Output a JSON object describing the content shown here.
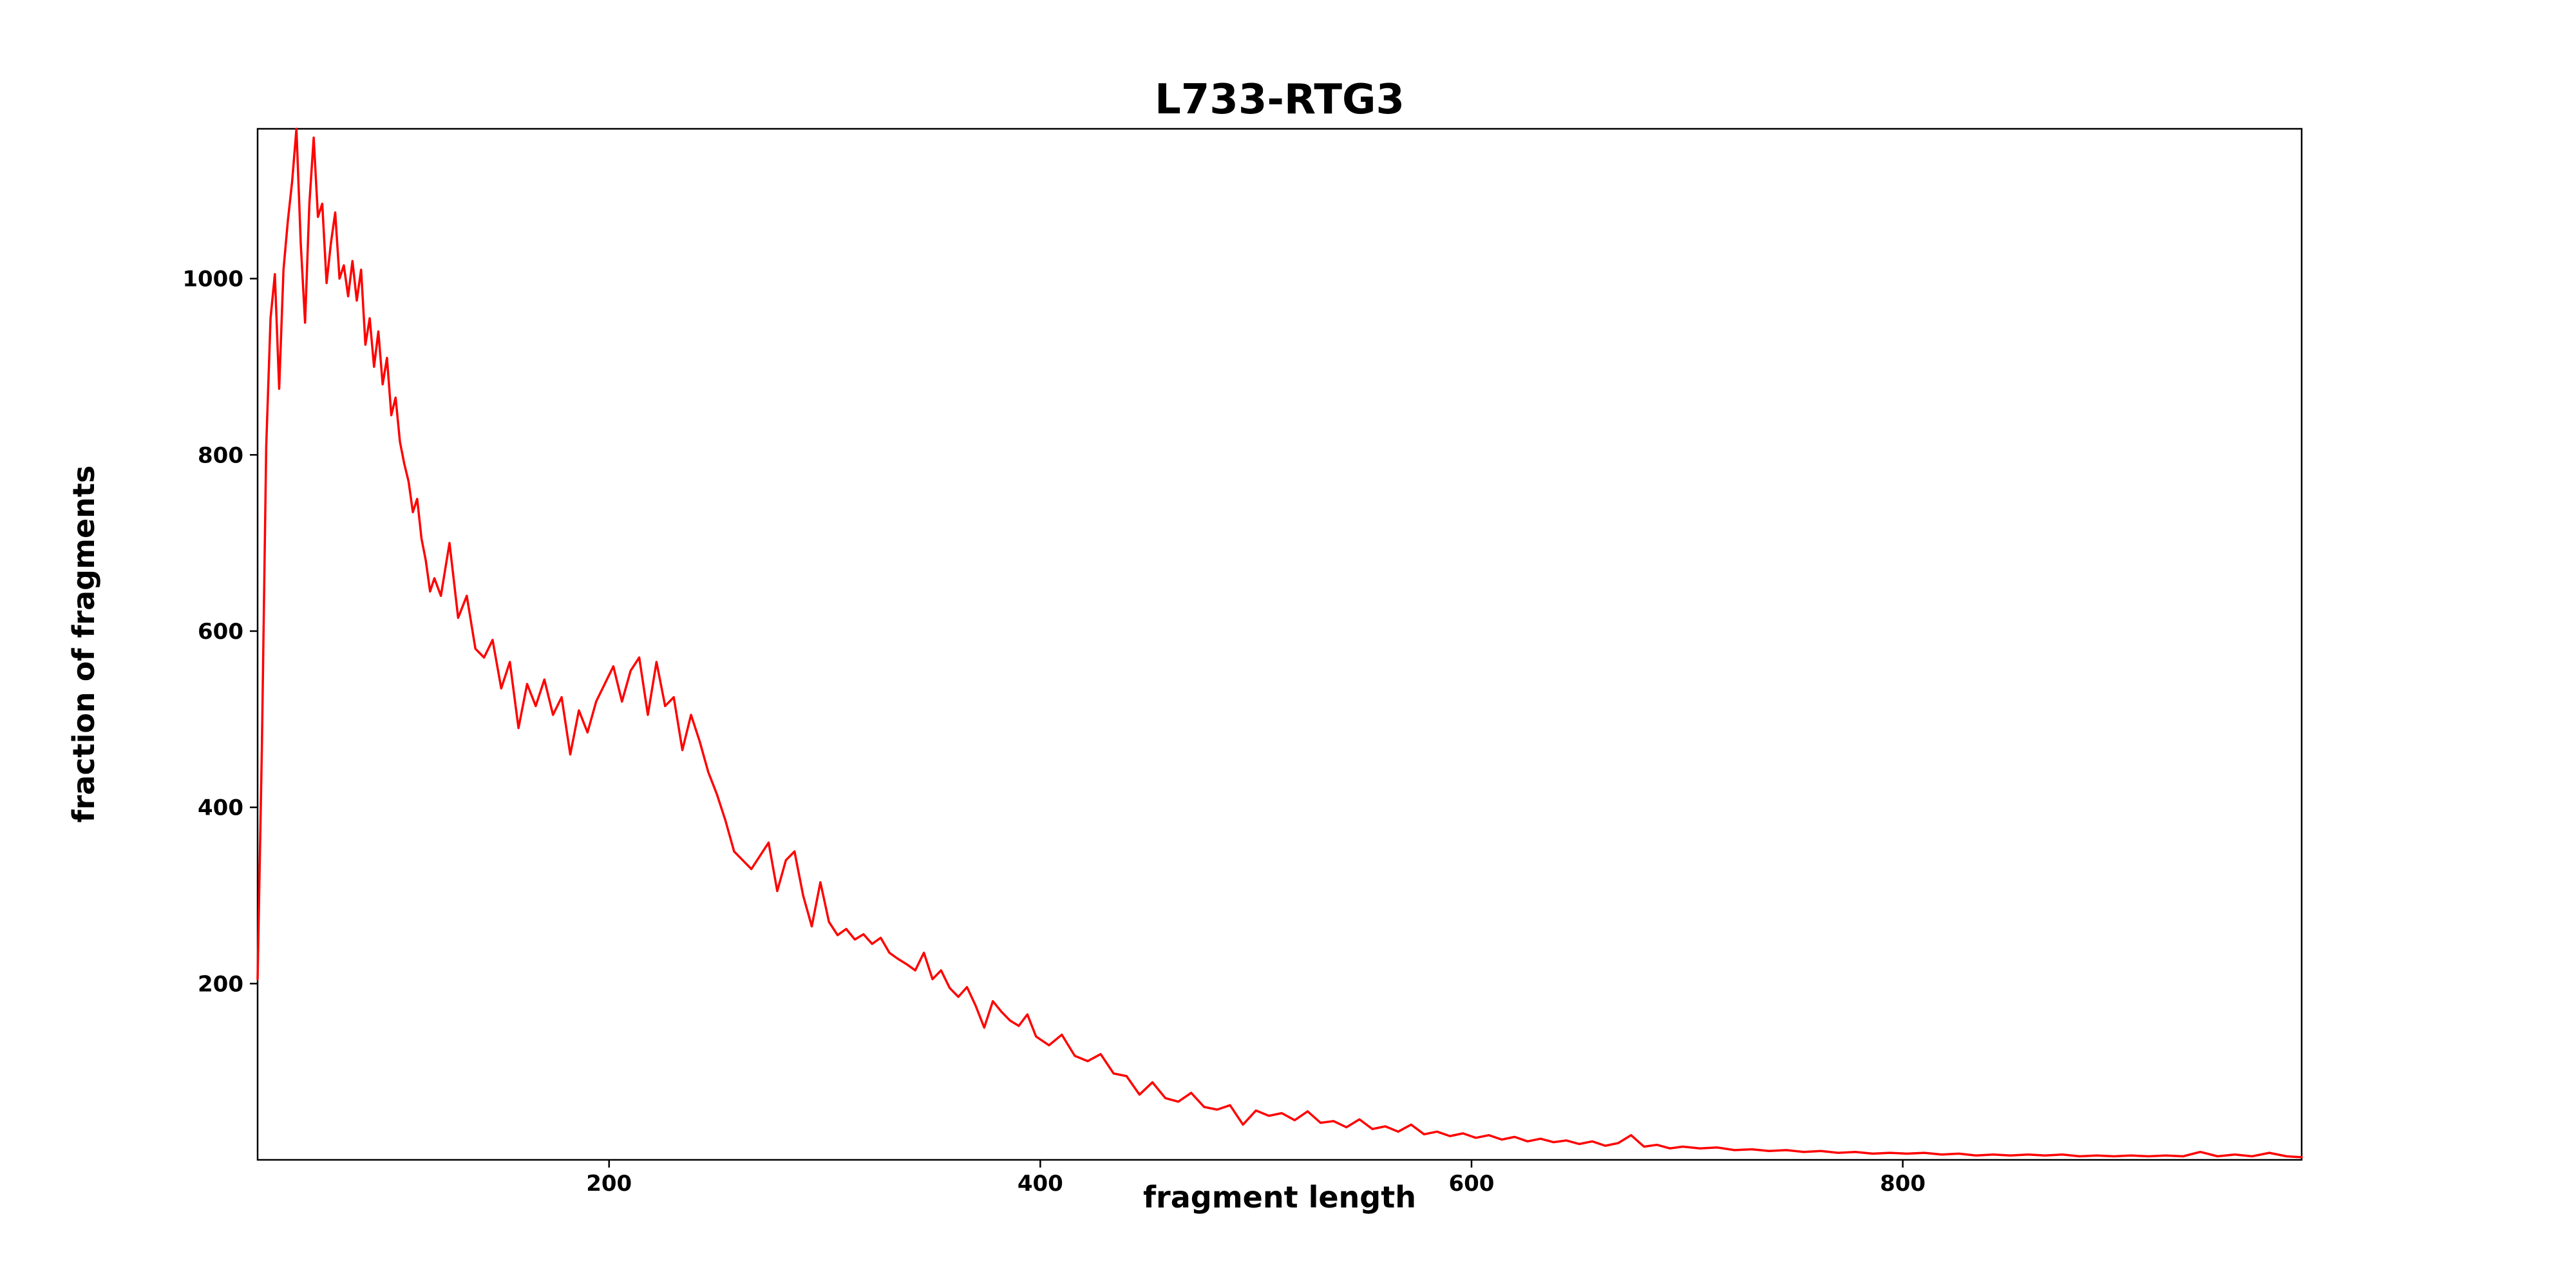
{
  "title": "L733-RTG3",
  "chart_data": {
    "type": "line",
    "title": "L733-RTG3",
    "xlabel": "fragment length",
    "ylabel": "fraction of fragments",
    "x_ticks": [
      200,
      400,
      600,
      800
    ],
    "y_ticks": [
      200,
      400,
      600,
      800,
      1000
    ],
    "xlim": [
      37,
      985
    ],
    "ylim": [
      0,
      1170
    ],
    "grid": false,
    "legend": "none",
    "line_color": "#ff0000",
    "axis_color": "#000000",
    "background_color": "#ffffff",
    "series": [
      {
        "name": "L733-RTG3",
        "x": [
          37,
          39,
          41,
          43,
          45,
          47,
          49,
          51,
          53,
          55,
          57,
          59,
          61,
          63,
          65,
          67,
          69,
          71,
          73,
          75,
          77,
          79,
          81,
          83,
          85,
          87,
          89,
          91,
          93,
          95,
          97,
          99,
          101,
          103,
          105,
          107,
          109,
          111,
          113,
          115,
          117,
          119,
          122,
          126,
          130,
          134,
          138,
          142,
          146,
          150,
          154,
          158,
          162,
          166,
          170,
          174,
          178,
          182,
          186,
          190,
          194,
          198,
          202,
          206,
          210,
          214,
          218,
          222,
          226,
          230,
          234,
          238,
          242,
          246,
          250,
          254,
          258,
          262,
          266,
          270,
          274,
          278,
          282,
          286,
          290,
          294,
          298,
          302,
          306,
          310,
          314,
          318,
          322,
          326,
          330,
          334,
          338,
          342,
          346,
          350,
          354,
          358,
          362,
          366,
          370,
          374,
          378,
          382,
          386,
          390,
          394,
          398,
          404,
          410,
          416,
          422,
          428,
          434,
          440,
          446,
          452,
          458,
          464,
          470,
          476,
          482,
          488,
          494,
          500,
          506,
          512,
          518,
          524,
          530,
          536,
          542,
          548,
          554,
          560,
          566,
          572,
          578,
          584,
          590,
          596,
          602,
          608,
          614,
          620,
          626,
          632,
          638,
          644,
          650,
          656,
          662,
          668,
          674,
          680,
          686,
          692,
          698,
          706,
          714,
          722,
          730,
          738,
          746,
          754,
          762,
          770,
          778,
          786,
          794,
          802,
          810,
          818,
          826,
          834,
          842,
          850,
          858,
          866,
          874,
          882,
          890,
          898,
          906,
          914,
          922,
          930,
          938,
          946,
          954,
          962,
          970,
          978,
          985
        ],
        "y": [
          205,
          470,
          810,
          955,
          1005,
          875,
          1010,
          1065,
          1110,
          1170,
          1040,
          950,
          1085,
          1160,
          1070,
          1085,
          995,
          1040,
          1075,
          1000,
          1015,
          980,
          1020,
          975,
          1010,
          925,
          955,
          900,
          940,
          880,
          910,
          845,
          865,
          815,
          790,
          770,
          735,
          750,
          705,
          680,
          645,
          660,
          640,
          700,
          615,
          640,
          580,
          570,
          590,
          535,
          565,
          490,
          540,
          515,
          545,
          505,
          525,
          460,
          510,
          485,
          520,
          540,
          560,
          520,
          555,
          570,
          505,
          565,
          515,
          525,
          465,
          505,
          475,
          440,
          415,
          385,
          350,
          340,
          330,
          345,
          360,
          305,
          340,
          350,
          300,
          265,
          315,
          270,
          255,
          262,
          250,
          256,
          245,
          252,
          235,
          228,
          222,
          215,
          235,
          205,
          215,
          195,
          185,
          196,
          175,
          150,
          180,
          168,
          158,
          152,
          165,
          140,
          130,
          142,
          118,
          112,
          120,
          98,
          95,
          74,
          88,
          70,
          66,
          76,
          60,
          57,
          62,
          40,
          56,
          50,
          53,
          45,
          55,
          42,
          44,
          37,
          46,
          35,
          38,
          32,
          40,
          29,
          32,
          27,
          30,
          25,
          28,
          23,
          26,
          21,
          24,
          20,
          22,
          18,
          21,
          16,
          19,
          28,
          15,
          17,
          13,
          15,
          13,
          14,
          11,
          12,
          10,
          11,
          9,
          10,
          8,
          9,
          7,
          8,
          7,
          8,
          6,
          7,
          5,
          6,
          5,
          6,
          5,
          6,
          4,
          5,
          4,
          5,
          4,
          5,
          4,
          9,
          4,
          6,
          4,
          8,
          4,
          3
        ]
      }
    ]
  }
}
